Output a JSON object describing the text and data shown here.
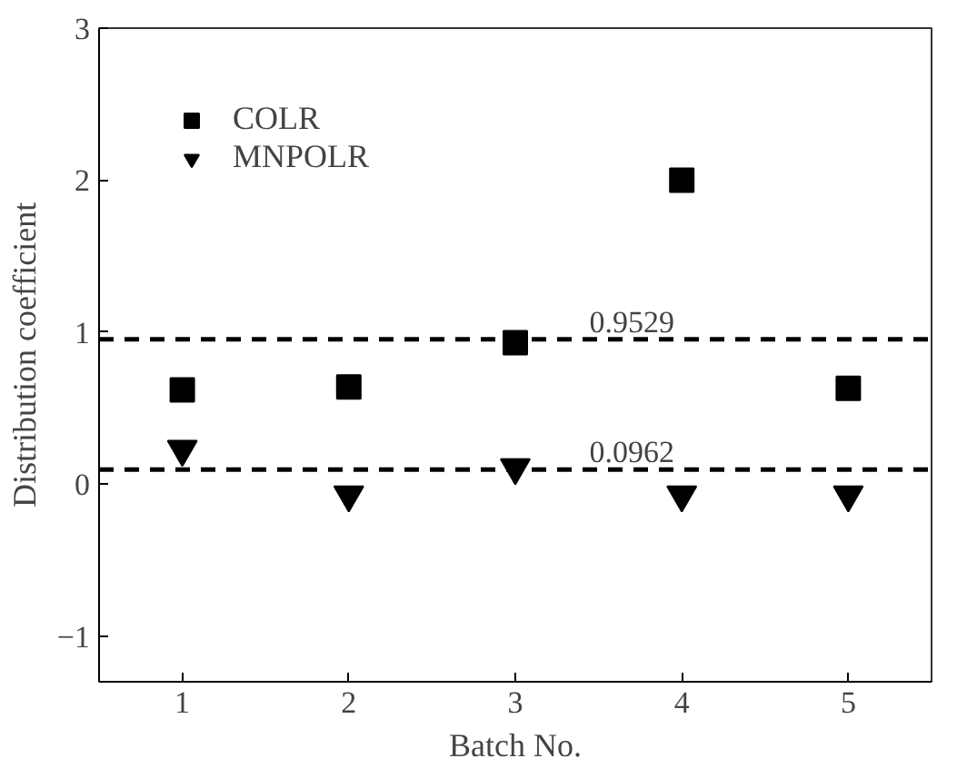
{
  "chart_data": {
    "type": "scatter",
    "xlabel": "Batch No.",
    "ylabel": "Distribution coefficient",
    "x": [
      1,
      2,
      3,
      4,
      5
    ],
    "series": [
      {
        "name": "COLR",
        "color": "#000000",
        "marker": "square",
        "values": [
          0.62,
          0.64,
          0.93,
          2.0,
          0.63
        ]
      },
      {
        "name": "MNPOLR",
        "color": "#000000",
        "marker": "triangle",
        "values": [
          0.23,
          -0.07,
          0.11,
          -0.07,
          -0.07
        ]
      }
    ],
    "xlim": [
      0.5,
      5.5
    ],
    "ylim": [
      -1.3,
      3
    ],
    "xticks": [
      1,
      2,
      3,
      4,
      5
    ],
    "yticks": [
      -1,
      0,
      1,
      2,
      3
    ],
    "ref_lines": [
      {
        "axis": "y",
        "value": 0.9529,
        "label": "0.9529",
        "color": "#000000",
        "line_style": "dashed"
      },
      {
        "axis": "y",
        "value": 0.0962,
        "label": "0.0962",
        "color": "#000000",
        "line_style": "dashed"
      }
    ],
    "grid": false,
    "legend": "top left"
  }
}
